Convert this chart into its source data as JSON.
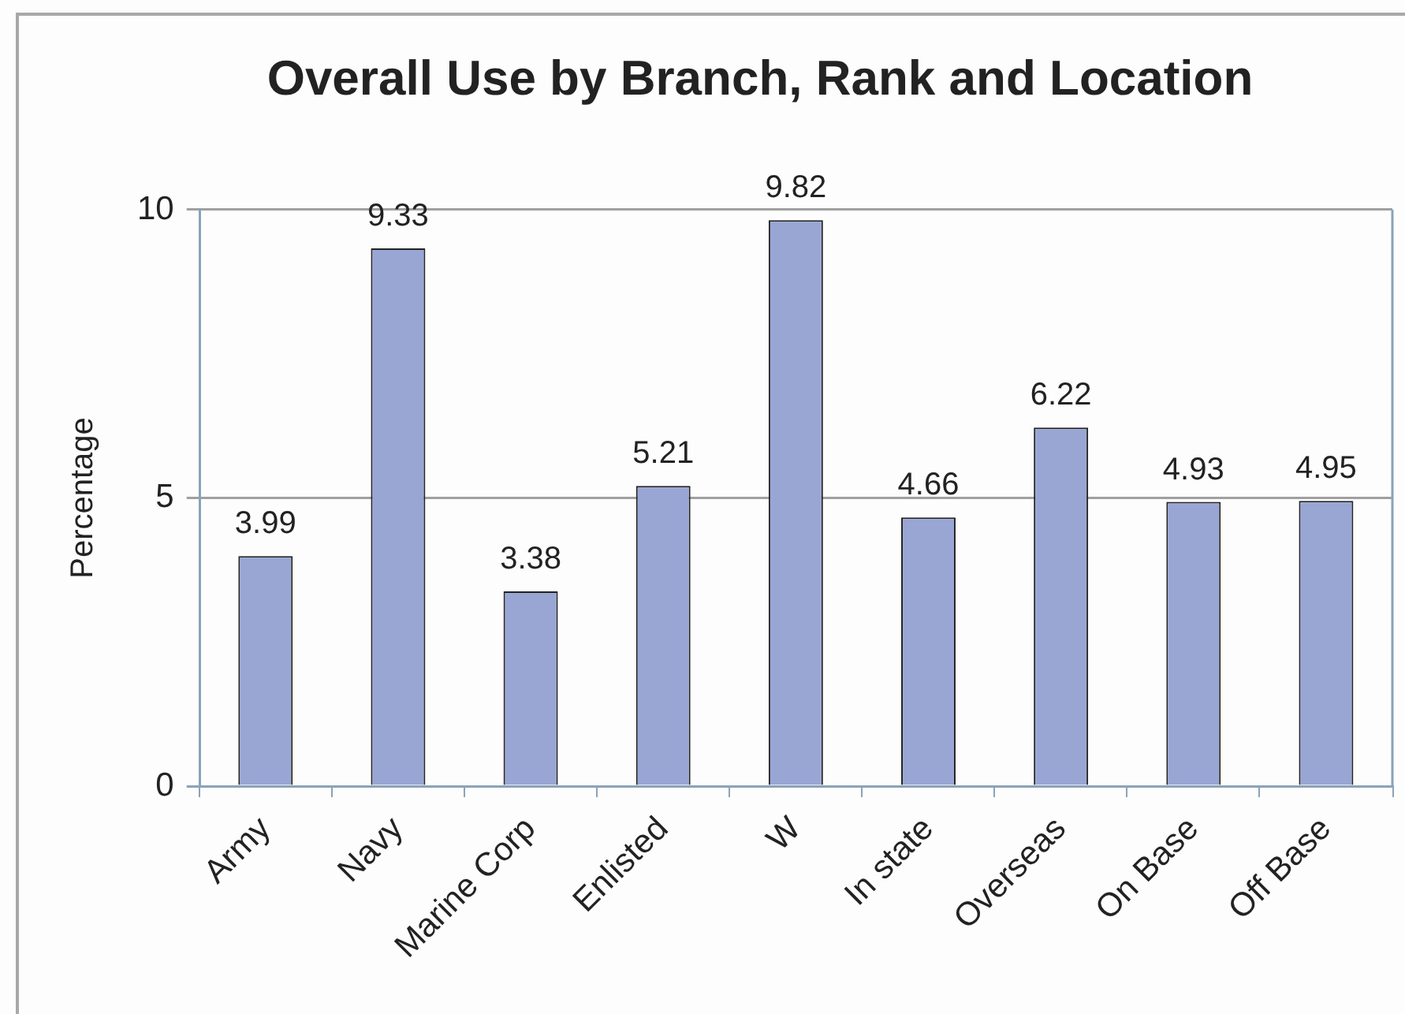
{
  "chart_data": {
    "type": "bar",
    "title": "Overall Use by Branch, Rank and Location",
    "ylabel": "Percentage",
    "categories": [
      "Army",
      "Navy",
      "Marine Corp",
      "Enlisted",
      "W",
      "In state",
      "Overseas",
      "On Base",
      "Off Base"
    ],
    "values": [
      3.99,
      9.33,
      3.38,
      5.21,
      9.82,
      4.66,
      6.22,
      4.93,
      4.95
    ],
    "color": "#99a6d4",
    "ylim": [
      0,
      10
    ],
    "yticks": [
      0,
      5,
      10
    ],
    "grid": "y",
    "data_labels": true
  }
}
